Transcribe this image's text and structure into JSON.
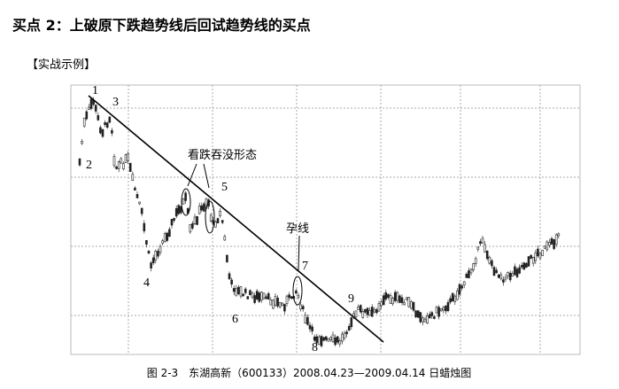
{
  "header": {
    "title": "买点 2：上破原下跌趋势线后回试趋势线的买点",
    "section": "【实战示例】"
  },
  "annotations": {
    "points": [
      "1",
      "2",
      "3",
      "4",
      "5",
      "6",
      "7",
      "8",
      "9"
    ],
    "engulfing": "看跌吞没形态",
    "harami": "孕线"
  },
  "caption": "图 2-3　东湖高新（600133）2008.04.23—2009.04.14 日蜡烛图"
}
